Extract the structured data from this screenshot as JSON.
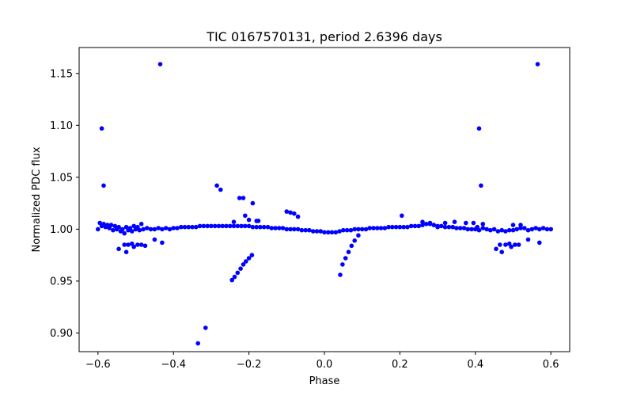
{
  "chart_data": {
    "type": "scatter",
    "title": "TIC 0167570131, period 2.6396 days",
    "xlabel": "Phase",
    "ylabel": "Normalized PDC flux",
    "xlim": [
      -0.65,
      0.65
    ],
    "ylim": [
      0.882,
      1.175
    ],
    "xticks": [
      -0.6,
      -0.4,
      -0.2,
      0.0,
      0.2,
      0.4,
      0.6
    ],
    "xtick_labels": [
      "−0.6",
      "−0.4",
      "−0.2",
      "0.0",
      "0.2",
      "0.4",
      "0.6"
    ],
    "yticks": [
      0.9,
      0.95,
      1.0,
      1.05,
      1.1,
      1.15
    ],
    "ytick_labels": [
      "0.90",
      "0.95",
      "1.00",
      "1.05",
      "1.10",
      "1.15"
    ],
    "grid": false,
    "marker_color": "#0000ff",
    "points": [
      [
        -0.6,
        1.0
      ],
      [
        -0.595,
        1.006
      ],
      [
        -0.59,
        1.003
      ],
      [
        -0.585,
        1.005
      ],
      [
        -0.58,
        1.002
      ],
      [
        -0.575,
        1.004
      ],
      [
        -0.57,
        1.001
      ],
      [
        -0.565,
        1.004
      ],
      [
        -0.56,
        0.999
      ],
      [
        -0.555,
        1.003
      ],
      [
        -0.55,
        1.0
      ],
      [
        -0.545,
        1.002
      ],
      [
        -0.54,
        0.998
      ],
      [
        -0.535,
        1.0
      ],
      [
        -0.53,
        0.996
      ],
      [
        -0.525,
        1.002
      ],
      [
        -0.52,
        0.999
      ],
      [
        -0.515,
        1.001
      ],
      [
        -0.51,
        0.998
      ],
      [
        -0.505,
        1.003
      ],
      [
        -0.5,
        1.0
      ],
      [
        -0.495,
        1.002
      ],
      [
        -0.49,
        0.999
      ],
      [
        -0.485,
        1.005
      ],
      [
        -0.48,
        1.0
      ],
      [
        -0.47,
        1.001
      ],
      [
        -0.46,
        1.0
      ],
      [
        -0.45,
        1.0
      ],
      [
        -0.44,
        1.001
      ],
      [
        -0.43,
        1.0
      ],
      [
        -0.42,
        1.001
      ],
      [
        -0.41,
        1.0
      ],
      [
        -0.4,
        1.001
      ],
      [
        -0.39,
        1.001
      ],
      [
        -0.38,
        1.002
      ],
      [
        -0.37,
        1.002
      ],
      [
        -0.36,
        1.002
      ],
      [
        -0.35,
        1.002
      ],
      [
        -0.34,
        1.002
      ],
      [
        -0.33,
        1.003
      ],
      [
        -0.32,
        1.003
      ],
      [
        -0.31,
        1.003
      ],
      [
        -0.3,
        1.003
      ],
      [
        -0.29,
        1.003
      ],
      [
        -0.28,
        1.003
      ],
      [
        -0.27,
        1.003
      ],
      [
        -0.26,
        1.003
      ],
      [
        -0.25,
        1.003
      ],
      [
        -0.24,
        1.003
      ],
      [
        -0.23,
        1.003
      ],
      [
        -0.22,
        1.003
      ],
      [
        -0.21,
        1.003
      ],
      [
        -0.2,
        1.003
      ],
      [
        -0.19,
        1.002
      ],
      [
        -0.18,
        1.002
      ],
      [
        -0.17,
        1.002
      ],
      [
        -0.16,
        1.002
      ],
      [
        -0.15,
        1.002
      ],
      [
        -0.14,
        1.001
      ],
      [
        -0.13,
        1.001
      ],
      [
        -0.12,
        1.001
      ],
      [
        -0.11,
        1.001
      ],
      [
        -0.1,
        1.0
      ],
      [
        -0.09,
        1.0
      ],
      [
        -0.08,
        1.0
      ],
      [
        -0.07,
        1.0
      ],
      [
        -0.06,
        0.999
      ],
      [
        -0.05,
        0.999
      ],
      [
        -0.04,
        0.999
      ],
      [
        -0.03,
        0.998
      ],
      [
        -0.02,
        0.998
      ],
      [
        -0.01,
        0.998
      ],
      [
        0.0,
        0.997
      ],
      [
        0.01,
        0.997
      ],
      [
        0.02,
        0.997
      ],
      [
        0.03,
        0.997
      ],
      [
        0.04,
        0.998
      ],
      [
        0.05,
        0.999
      ],
      [
        0.06,
        0.999
      ],
      [
        0.07,
        0.999
      ],
      [
        0.08,
        1.0
      ],
      [
        0.09,
        1.0
      ],
      [
        0.1,
        1.0
      ],
      [
        0.11,
        1.0
      ],
      [
        0.12,
        1.001
      ],
      [
        0.13,
        1.001
      ],
      [
        0.14,
        1.001
      ],
      [
        0.15,
        1.001
      ],
      [
        0.16,
        1.001
      ],
      [
        0.17,
        1.002
      ],
      [
        0.18,
        1.002
      ],
      [
        0.19,
        1.002
      ],
      [
        0.2,
        1.002
      ],
      [
        0.21,
        1.002
      ],
      [
        0.22,
        1.002
      ],
      [
        0.23,
        1.003
      ],
      [
        0.24,
        1.003
      ],
      [
        0.25,
        1.003
      ],
      [
        0.26,
        1.004
      ],
      [
        0.27,
        1.005
      ],
      [
        0.28,
        1.005
      ],
      [
        0.29,
        1.004
      ],
      [
        0.3,
        1.003
      ],
      [
        0.31,
        1.003
      ],
      [
        0.32,
        1.002
      ],
      [
        0.33,
        1.002
      ],
      [
        0.34,
        1.002
      ],
      [
        0.35,
        1.001
      ],
      [
        0.36,
        1.001
      ],
      [
        0.37,
        1.001
      ],
      [
        0.38,
        1.0
      ],
      [
        0.39,
        1.0
      ],
      [
        0.4,
        1.0
      ],
      [
        0.405,
        1.002
      ],
      [
        0.41,
        0.999
      ],
      [
        0.42,
        1.001
      ],
      [
        0.43,
        1.0
      ],
      [
        0.44,
        0.999
      ],
      [
        0.45,
        1.0
      ],
      [
        0.46,
        0.998
      ],
      [
        0.47,
        0.999
      ],
      [
        0.48,
        0.998
      ],
      [
        0.49,
        0.999
      ],
      [
        0.5,
        0.999
      ],
      [
        0.51,
        1.0
      ],
      [
        0.52,
        1.001
      ],
      [
        0.53,
        1.001
      ],
      [
        0.54,
        0.999
      ],
      [
        0.55,
        1.0
      ],
      [
        0.56,
        1.001
      ],
      [
        0.57,
        1.0
      ],
      [
        0.58,
        1.001
      ],
      [
        0.59,
        1.0
      ],
      [
        0.6,
        1.0
      ],
      [
        -0.59,
        1.097
      ],
      [
        -0.585,
        1.042
      ],
      [
        -0.435,
        1.159
      ],
      [
        -0.545,
        0.981
      ],
      [
        -0.53,
        0.985
      ],
      [
        -0.525,
        0.978
      ],
      [
        -0.52,
        0.985
      ],
      [
        -0.51,
        0.986
      ],
      [
        -0.505,
        0.983
      ],
      [
        -0.495,
        0.985
      ],
      [
        -0.485,
        0.985
      ],
      [
        -0.475,
        0.984
      ],
      [
        -0.45,
        0.99
      ],
      [
        -0.43,
        0.987
      ],
      [
        -0.285,
        1.042
      ],
      [
        -0.275,
        1.038
      ],
      [
        -0.225,
        1.03
      ],
      [
        -0.215,
        1.03
      ],
      [
        -0.21,
        1.013
      ],
      [
        -0.2,
        1.009
      ],
      [
        -0.19,
        1.025
      ],
      [
        -0.18,
        1.008
      ],
      [
        -0.175,
        1.008
      ],
      [
        -0.24,
        1.007
      ],
      [
        -0.1,
        1.017
      ],
      [
        -0.09,
        1.016
      ],
      [
        -0.08,
        1.015
      ],
      [
        -0.07,
        1.012
      ],
      [
        -0.335,
        0.89
      ],
      [
        -0.315,
        0.905
      ],
      [
        -0.245,
        0.951
      ],
      [
        -0.238,
        0.954
      ],
      [
        -0.23,
        0.958
      ],
      [
        -0.222,
        0.962
      ],
      [
        -0.215,
        0.966
      ],
      [
        -0.208,
        0.969
      ],
      [
        -0.2,
        0.972
      ],
      [
        -0.192,
        0.975
      ],
      [
        0.042,
        0.956
      ],
      [
        0.048,
        0.966
      ],
      [
        0.056,
        0.972
      ],
      [
        0.064,
        0.978
      ],
      [
        0.072,
        0.984
      ],
      [
        0.08,
        0.989
      ],
      [
        0.09,
        0.994
      ],
      [
        0.205,
        1.013
      ],
      [
        0.26,
        1.007
      ],
      [
        0.28,
        1.006
      ],
      [
        0.3,
        1.002
      ],
      [
        0.32,
        1.006
      ],
      [
        0.345,
        1.007
      ],
      [
        0.375,
        1.006
      ],
      [
        0.41,
        1.097
      ],
      [
        0.415,
        1.042
      ],
      [
        0.565,
        1.159
      ],
      [
        0.455,
        0.981
      ],
      [
        0.465,
        0.985
      ],
      [
        0.47,
        0.978
      ],
      [
        0.48,
        0.985
      ],
      [
        0.49,
        0.986
      ],
      [
        0.495,
        0.983
      ],
      [
        0.505,
        0.985
      ],
      [
        0.515,
        0.985
      ],
      [
        0.54,
        0.99
      ],
      [
        0.57,
        0.987
      ],
      [
        0.395,
        1.006
      ],
      [
        0.42,
        1.005
      ],
      [
        0.5,
        1.004
      ],
      [
        0.52,
        1.004
      ]
    ]
  }
}
